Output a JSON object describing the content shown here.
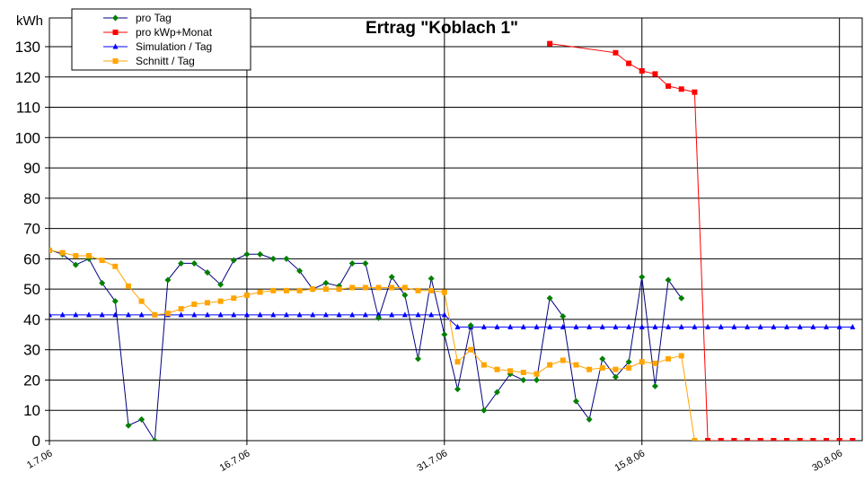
{
  "chart_data": {
    "type": "line",
    "title": "Ertrag \"Koblach 1\"",
    "ylabel": "kWh",
    "ylim": [
      0,
      130
    ],
    "yticks": [
      0,
      10,
      20,
      30,
      40,
      50,
      60,
      70,
      80,
      90,
      100,
      110,
      120,
      130
    ],
    "xlim": [
      "2006-07-01",
      "2006-08-31"
    ],
    "xticks": [
      "1.7.06",
      "16.7.06",
      "31.7.06",
      "15.8.06",
      "30.8.06"
    ],
    "xtick_dates": [
      "2006-07-01",
      "2006-07-16",
      "2006-07-31",
      "2006-08-15",
      "2006-08-30"
    ],
    "grid": true,
    "legend_position": "top-left",
    "series": [
      {
        "name": "pro Tag",
        "color": "#000080",
        "marker_color": "#008000",
        "marker": "diamond",
        "x": [
          "2006-07-01",
          "2006-07-02",
          "2006-07-03",
          "2006-07-04",
          "2006-07-05",
          "2006-07-06",
          "2006-07-07",
          "2006-07-08",
          "2006-07-09",
          "2006-07-10",
          "2006-07-11",
          "2006-07-12",
          "2006-07-13",
          "2006-07-14",
          "2006-07-15",
          "2006-07-16",
          "2006-07-17",
          "2006-07-18",
          "2006-07-19",
          "2006-07-20",
          "2006-07-21",
          "2006-07-22",
          "2006-07-23",
          "2006-07-24",
          "2006-07-25",
          "2006-07-26",
          "2006-07-27",
          "2006-07-28",
          "2006-07-29",
          "2006-07-30",
          "2006-07-31",
          "2006-08-01",
          "2006-08-02",
          "2006-08-03",
          "2006-08-04",
          "2006-08-05",
          "2006-08-06",
          "2006-08-07",
          "2006-08-08",
          "2006-08-09",
          "2006-08-10",
          "2006-08-11",
          "2006-08-12",
          "2006-08-13",
          "2006-08-14",
          "2006-08-15",
          "2006-08-16",
          "2006-08-17",
          "2006-08-18"
        ],
        "values": [
          63,
          61.5,
          58,
          60,
          52,
          46,
          5,
          7,
          0,
          53,
          58.5,
          58.5,
          55.5,
          51.5,
          59.5,
          61.5,
          61.5,
          60,
          60,
          56,
          50,
          52,
          51,
          58.5,
          58.5,
          40.5,
          54,
          48,
          27,
          53.5,
          35,
          17,
          38,
          10,
          16,
          22,
          20,
          20,
          47,
          41,
          13,
          7,
          27,
          21,
          26,
          54,
          18,
          53,
          47
        ]
      },
      {
        "name": "pro kWp+Monat",
        "color": "#ff0000",
        "marker_color": "#ff0000",
        "marker": "square",
        "x": [
          "2006-08-08",
          "2006-08-13",
          "2006-08-14",
          "2006-08-15",
          "2006-08-16",
          "2006-08-17",
          "2006-08-18",
          "2006-08-19",
          "2006-08-20",
          "2006-08-21",
          "2006-08-22",
          "2006-08-23",
          "2006-08-24",
          "2006-08-25",
          "2006-08-26",
          "2006-08-27",
          "2006-08-28",
          "2006-08-29",
          "2006-08-30",
          "2006-08-31"
        ],
        "values": [
          131,
          128,
          124.5,
          122,
          121,
          117,
          116,
          115,
          0,
          0,
          0,
          0,
          0,
          0,
          0,
          0,
          0,
          0,
          0,
          0
        ]
      },
      {
        "name": "Simulation / Tag",
        "color": "#0000ff",
        "marker_color": "#0000ff",
        "marker": "triangle",
        "x_ranges": [
          [
            "2006-07-01",
            "2006-07-31",
            41.5
          ],
          [
            "2006-08-01",
            "2006-08-31",
            37.5
          ]
        ]
      },
      {
        "name": "Schnitt / Tag",
        "color": "#ffa500",
        "marker_color": "#ffa500",
        "marker": "square",
        "x": [
          "2006-07-01",
          "2006-07-02",
          "2006-07-03",
          "2006-07-04",
          "2006-07-05",
          "2006-07-06",
          "2006-07-07",
          "2006-07-08",
          "2006-07-09",
          "2006-07-10",
          "2006-07-11",
          "2006-07-12",
          "2006-07-13",
          "2006-07-14",
          "2006-07-15",
          "2006-07-16",
          "2006-07-17",
          "2006-07-18",
          "2006-07-19",
          "2006-07-20",
          "2006-07-21",
          "2006-07-22",
          "2006-07-23",
          "2006-07-24",
          "2006-07-25",
          "2006-07-26",
          "2006-07-27",
          "2006-07-28",
          "2006-07-29",
          "2006-07-30",
          "2006-07-31",
          "2006-08-01",
          "2006-08-02",
          "2006-08-03",
          "2006-08-04",
          "2006-08-05",
          "2006-08-06",
          "2006-08-07",
          "2006-08-08",
          "2006-08-09",
          "2006-08-10",
          "2006-08-11",
          "2006-08-12",
          "2006-08-13",
          "2006-08-14",
          "2006-08-15",
          "2006-08-16",
          "2006-08-17",
          "2006-08-18",
          "2006-08-19",
          "2006-08-20",
          "2006-08-21",
          "2006-08-22",
          "2006-08-23",
          "2006-08-24",
          "2006-08-25",
          "2006-08-26",
          "2006-08-27",
          "2006-08-28",
          "2006-08-29",
          "2006-08-30",
          "2006-08-31"
        ],
        "values": [
          62.8,
          62,
          61,
          61,
          59.5,
          57.5,
          51,
          46,
          41.5,
          42,
          43.5,
          45,
          45.5,
          46,
          47,
          48,
          49,
          49.5,
          49.5,
          49.5,
          50,
          50,
          50,
          50.5,
          50.5,
          50.5,
          50.5,
          50.5,
          49.5,
          49.5,
          49,
          26,
          30,
          25,
          23.5,
          23,
          22.5,
          22,
          25,
          26.5,
          25,
          23.5,
          24,
          23.5,
          24,
          26,
          25.5,
          27,
          28,
          0,
          0,
          0,
          0,
          0,
          0,
          0,
          0,
          0,
          0,
          0,
          0,
          0
        ]
      }
    ]
  }
}
